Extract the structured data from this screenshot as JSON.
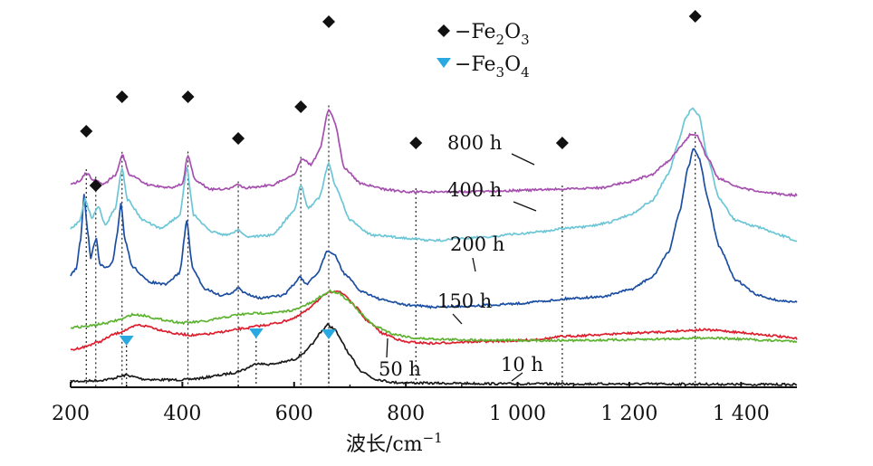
{
  "chart_data": {
    "type": "line",
    "title": "",
    "xlabel": "波长/cm",
    "xlabel_sup": "−1",
    "ylabel": "",
    "xlim": [
      200,
      1500
    ],
    "xticks": [
      200,
      400,
      600,
      800,
      1000,
      1200,
      1400
    ],
    "xtick_labels": [
      "200",
      "400",
      "600",
      "800",
      "1 000",
      "1 200",
      "1 400"
    ],
    "legend": [
      {
        "marker": "diamond",
        "color": "#111111",
        "prefix": "−Fe",
        "sub1": "2",
        "mid": "O",
        "sub2": "3"
      },
      {
        "marker": "triangle-down",
        "color": "#29a9e0",
        "prefix": "−Fe",
        "sub1": "3",
        "mid": "O",
        "sub2": "4"
      }
    ],
    "series": [
      {
        "name": "10 h",
        "color": "#1a1a1a",
        "points": [
          [
            200,
            0.05
          ],
          [
            220,
            0.05
          ],
          [
            250,
            0.06
          ],
          [
            270,
            0.08
          ],
          [
            290,
            0.12
          ],
          [
            300,
            0.14
          ],
          [
            315,
            0.11
          ],
          [
            330,
            0.08
          ],
          [
            360,
            0.07
          ],
          [
            400,
            0.07
          ],
          [
            430,
            0.09
          ],
          [
            460,
            0.13
          ],
          [
            490,
            0.17
          ],
          [
            510,
            0.22
          ],
          [
            525,
            0.28
          ],
          [
            535,
            0.32
          ],
          [
            545,
            0.3
          ],
          [
            560,
            0.3
          ],
          [
            580,
            0.33
          ],
          [
            600,
            0.37
          ],
          [
            620,
            0.48
          ],
          [
            635,
            0.62
          ],
          [
            648,
            0.78
          ],
          [
            660,
            0.88
          ],
          [
            672,
            0.82
          ],
          [
            685,
            0.64
          ],
          [
            700,
            0.42
          ],
          [
            720,
            0.2
          ],
          [
            745,
            0.08
          ],
          [
            780,
            0.03
          ],
          [
            850,
            0.02
          ],
          [
            1000,
            0.01
          ],
          [
            1200,
            0.01
          ],
          [
            1500,
            0.0
          ]
        ]
      },
      {
        "name": "50 h",
        "color": "#dd1f2e",
        "points": [
          [
            200,
            0.48
          ],
          [
            220,
            0.52
          ],
          [
            250,
            0.6
          ],
          [
            280,
            0.72
          ],
          [
            300,
            0.78
          ],
          [
            320,
            0.85
          ],
          [
            340,
            0.83
          ],
          [
            360,
            0.78
          ],
          [
            390,
            0.72
          ],
          [
            420,
            0.7
          ],
          [
            450,
            0.72
          ],
          [
            480,
            0.76
          ],
          [
            510,
            0.8
          ],
          [
            540,
            0.84
          ],
          [
            570,
            0.88
          ],
          [
            600,
            0.95
          ],
          [
            620,
            1.05
          ],
          [
            640,
            1.2
          ],
          [
            660,
            1.32
          ],
          [
            675,
            1.36
          ],
          [
            690,
            1.3
          ],
          [
            710,
            1.12
          ],
          [
            730,
            0.92
          ],
          [
            760,
            0.72
          ],
          [
            800,
            0.6
          ],
          [
            850,
            0.58
          ],
          [
            900,
            0.6
          ],
          [
            1000,
            0.62
          ],
          [
            1050,
            0.65
          ],
          [
            1080,
            0.68
          ],
          [
            1100,
            0.69
          ],
          [
            1150,
            0.71
          ],
          [
            1200,
            0.73
          ],
          [
            1260,
            0.75
          ],
          [
            1300,
            0.77
          ],
          [
            1330,
            0.78
          ],
          [
            1360,
            0.77
          ],
          [
            1400,
            0.74
          ],
          [
            1450,
            0.7
          ],
          [
            1500,
            0.65
          ]
        ]
      },
      {
        "name": "150 h",
        "color": "#5db331",
        "points": [
          [
            200,
            0.96
          ],
          [
            230,
            0.98
          ],
          [
            260,
            1.02
          ],
          [
            290,
            1.08
          ],
          [
            310,
            1.15
          ],
          [
            330,
            1.14
          ],
          [
            360,
            1.08
          ],
          [
            400,
            1.03
          ],
          [
            440,
            1.05
          ],
          [
            470,
            1.1
          ],
          [
            500,
            1.15
          ],
          [
            530,
            1.17
          ],
          [
            570,
            1.18
          ],
          [
            600,
            1.22
          ],
          [
            630,
            1.32
          ],
          [
            650,
            1.43
          ],
          [
            665,
            1.5
          ],
          [
            680,
            1.47
          ],
          [
            700,
            1.34
          ],
          [
            720,
            1.16
          ],
          [
            745,
            0.98
          ],
          [
            780,
            0.86
          ],
          [
            820,
            0.8
          ],
          [
            900,
            0.78
          ],
          [
            1000,
            0.77
          ],
          [
            1100,
            0.77
          ],
          [
            1200,
            0.78
          ],
          [
            1300,
            0.8
          ],
          [
            1340,
            0.81
          ],
          [
            1400,
            0.79
          ],
          [
            1450,
            0.77
          ],
          [
            1500,
            0.76
          ]
        ]
      },
      {
        "name": "200 h",
        "color": "#1c4ea1",
        "points": [
          [
            200,
            1.52
          ],
          [
            210,
            1.62
          ],
          [
            218,
            2.05
          ],
          [
            224,
            2.72
          ],
          [
            230,
            2.2
          ],
          [
            236,
            1.75
          ],
          [
            242,
            1.98
          ],
          [
            246,
            2.05
          ],
          [
            252,
            1.68
          ],
          [
            262,
            1.62
          ],
          [
            275,
            1.7
          ],
          [
            283,
            2.1
          ],
          [
            290,
            2.58
          ],
          [
            297,
            2.05
          ],
          [
            310,
            1.65
          ],
          [
            340,
            1.42
          ],
          [
            370,
            1.38
          ],
          [
            395,
            1.55
          ],
          [
            408,
            2.32
          ],
          [
            418,
            1.62
          ],
          [
            440,
            1.32
          ],
          [
            470,
            1.22
          ],
          [
            490,
            1.26
          ],
          [
            500,
            1.33
          ],
          [
            510,
            1.26
          ],
          [
            540,
            1.18
          ],
          [
            580,
            1.22
          ],
          [
            600,
            1.38
          ],
          [
            610,
            1.5
          ],
          [
            622,
            1.38
          ],
          [
            640,
            1.52
          ],
          [
            660,
            1.88
          ],
          [
            672,
            1.82
          ],
          [
            690,
            1.54
          ],
          [
            720,
            1.28
          ],
          [
            760,
            1.15
          ],
          [
            800,
            1.08
          ],
          [
            850,
            1.05
          ],
          [
            900,
            1.06
          ],
          [
            950,
            1.08
          ],
          [
            1000,
            1.1
          ],
          [
            1050,
            1.14
          ],
          [
            1100,
            1.18
          ],
          [
            1150,
            1.2
          ],
          [
            1200,
            1.3
          ],
          [
            1240,
            1.48
          ],
          [
            1270,
            1.85
          ],
          [
            1290,
            2.45
          ],
          [
            1305,
            3.1
          ],
          [
            1315,
            3.38
          ],
          [
            1325,
            3.25
          ],
          [
            1340,
            2.65
          ],
          [
            1360,
            1.95
          ],
          [
            1390,
            1.45
          ],
          [
            1430,
            1.22
          ],
          [
            1470,
            1.14
          ],
          [
            1500,
            1.12
          ]
        ]
      },
      {
        "name": "400 h",
        "color": "#6cc6d6",
        "points": [
          [
            200,
            2.3
          ],
          [
            215,
            2.4
          ],
          [
            226,
            2.72
          ],
          [
            238,
            2.46
          ],
          [
            250,
            2.62
          ],
          [
            262,
            2.35
          ],
          [
            280,
            2.6
          ],
          [
            292,
            3.2
          ],
          [
            302,
            2.72
          ],
          [
            330,
            2.42
          ],
          [
            360,
            2.3
          ],
          [
            395,
            2.48
          ],
          [
            408,
            3.2
          ],
          [
            420,
            2.5
          ],
          [
            450,
            2.26
          ],
          [
            480,
            2.2
          ],
          [
            500,
            2.28
          ],
          [
            515,
            2.18
          ],
          [
            560,
            2.2
          ],
          [
            600,
            2.55
          ],
          [
            612,
            2.94
          ],
          [
            625,
            2.6
          ],
          [
            645,
            2.75
          ],
          [
            662,
            3.26
          ],
          [
            675,
            2.9
          ],
          [
            700,
            2.42
          ],
          [
            740,
            2.2
          ],
          [
            800,
            2.16
          ],
          [
            850,
            2.12
          ],
          [
            900,
            2.15
          ],
          [
            950,
            2.18
          ],
          [
            1000,
            2.22
          ],
          [
            1050,
            2.26
          ],
          [
            1080,
            2.3
          ],
          [
            1120,
            2.32
          ],
          [
            1160,
            2.38
          ],
          [
            1200,
            2.5
          ],
          [
            1240,
            2.7
          ],
          [
            1270,
            3.1
          ],
          [
            1290,
            3.62
          ],
          [
            1300,
            3.92
          ],
          [
            1313,
            4.08
          ],
          [
            1325,
            3.96
          ],
          [
            1340,
            3.35
          ],
          [
            1360,
            2.75
          ],
          [
            1390,
            2.42
          ],
          [
            1430,
            2.32
          ],
          [
            1470,
            2.2
          ],
          [
            1500,
            2.12
          ]
        ]
      },
      {
        "name": "800 h",
        "color": "#a54fae",
        "points": [
          [
            200,
            2.9
          ],
          [
            215,
            2.96
          ],
          [
            228,
            3.08
          ],
          [
            240,
            2.98
          ],
          [
            260,
            2.92
          ],
          [
            280,
            3.05
          ],
          [
            293,
            3.35
          ],
          [
            305,
            3.05
          ],
          [
            340,
            2.9
          ],
          [
            380,
            2.86
          ],
          [
            400,
            2.92
          ],
          [
            410,
            3.34
          ],
          [
            422,
            2.98
          ],
          [
            450,
            2.84
          ],
          [
            480,
            2.84
          ],
          [
            500,
            2.9
          ],
          [
            515,
            2.86
          ],
          [
            560,
            2.9
          ],
          [
            600,
            3.05
          ],
          [
            615,
            3.3
          ],
          [
            630,
            3.2
          ],
          [
            645,
            3.4
          ],
          [
            662,
            4.02
          ],
          [
            672,
            3.85
          ],
          [
            690,
            3.15
          ],
          [
            720,
            2.92
          ],
          [
            760,
            2.84
          ],
          [
            800,
            2.8
          ],
          [
            850,
            2.8
          ],
          [
            900,
            2.8
          ],
          [
            1000,
            2.82
          ],
          [
            1080,
            2.84
          ],
          [
            1150,
            2.86
          ],
          [
            1200,
            2.95
          ],
          [
            1240,
            3.05
          ],
          [
            1270,
            3.25
          ],
          [
            1295,
            3.5
          ],
          [
            1310,
            3.65
          ],
          [
            1322,
            3.62
          ],
          [
            1340,
            3.3
          ],
          [
            1360,
            3.0
          ],
          [
            1400,
            2.85
          ],
          [
            1450,
            2.78
          ],
          [
            1500,
            2.75
          ]
        ]
      }
    ],
    "curve_labels": [
      {
        "text": "800 h",
        "series": "800 h"
      },
      {
        "text": "400 h",
        "series": "400 h"
      },
      {
        "text": "200 h",
        "series": "200 h"
      },
      {
        "text": "150 h",
        "series": "150 h"
      },
      {
        "text": "50 h",
        "series": "50 h"
      },
      {
        "text": "10 h",
        "series": "10 h"
      }
    ],
    "fe2o3_peaks": [
      228,
      245,
      292,
      410,
      500,
      612,
      662,
      818,
      1080,
      1318
    ],
    "fe3o4_peaks": [
      300,
      532,
      662
    ]
  }
}
